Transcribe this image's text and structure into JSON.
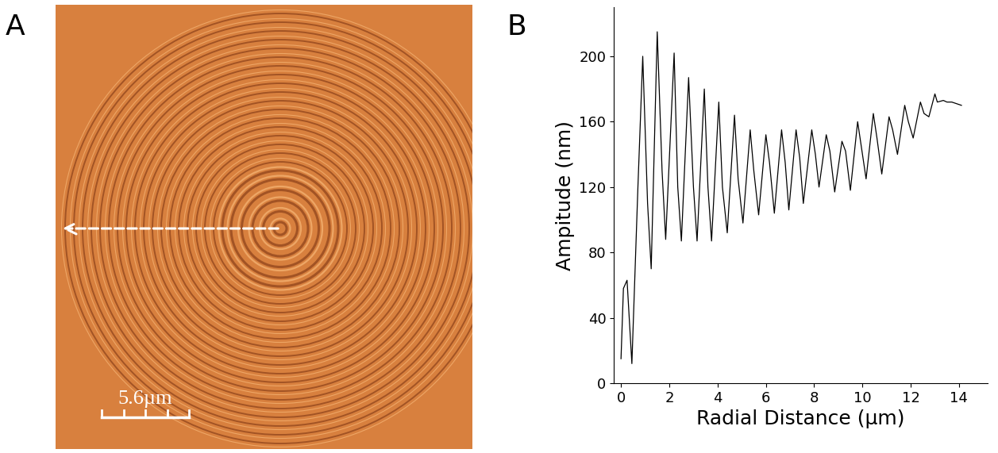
{
  "panel_a": {
    "panel_label": "A",
    "scale_bar_label": "5.6µm"
  },
  "chart_data": {
    "type": "line",
    "panel_label": "B",
    "xlabel": "Radial Distance (µm)",
    "ylabel": "Ampitude (nm)",
    "x": [
      0,
      0.1,
      0.25,
      0.45,
      0.7,
      0.9,
      1.1,
      1.25,
      1.5,
      1.7,
      1.85,
      2.2,
      2.35,
      2.5,
      2.8,
      3.0,
      3.15,
      3.45,
      3.6,
      3.75,
      4.05,
      4.2,
      4.4,
      4.7,
      4.85,
      5.05,
      5.35,
      5.5,
      5.7,
      6.0,
      6.15,
      6.35,
      6.65,
      6.8,
      6.95,
      7.25,
      7.4,
      7.55,
      7.9,
      8.05,
      8.2,
      8.5,
      8.65,
      8.85,
      9.15,
      9.3,
      9.5,
      9.8,
      9.95,
      10.15,
      10.45,
      10.6,
      10.8,
      11.1,
      11.25,
      11.45,
      11.75,
      11.9,
      12.1,
      12.4,
      12.55,
      12.75,
      13.0,
      13.1,
      13.35,
      13.5,
      13.7,
      14.1
    ],
    "values": [
      15,
      58,
      63,
      12,
      120,
      200,
      110,
      70,
      215,
      130,
      88,
      202,
      120,
      87,
      187,
      120,
      87,
      180,
      120,
      87,
      172,
      120,
      92,
      164,
      125,
      98,
      155,
      130,
      103,
      152,
      135,
      104,
      155,
      135,
      106,
      155,
      138,
      110,
      155,
      140,
      120,
      152,
      142,
      117,
      148,
      142,
      118,
      160,
      145,
      125,
      165,
      150,
      128,
      163,
      155,
      140,
      170,
      160,
      150,
      172,
      165,
      163,
      177,
      172,
      173,
      172,
      172,
      170
    ],
    "color": "#000000",
    "xlim": [
      -0.3,
      15.2
    ],
    "xticks": [
      0,
      2,
      4,
      6,
      8,
      10,
      12,
      14
    ],
    "ylim": [
      0,
      230
    ],
    "yticks": [
      0,
      40,
      80,
      120,
      160,
      200
    ],
    "grid": false
  }
}
